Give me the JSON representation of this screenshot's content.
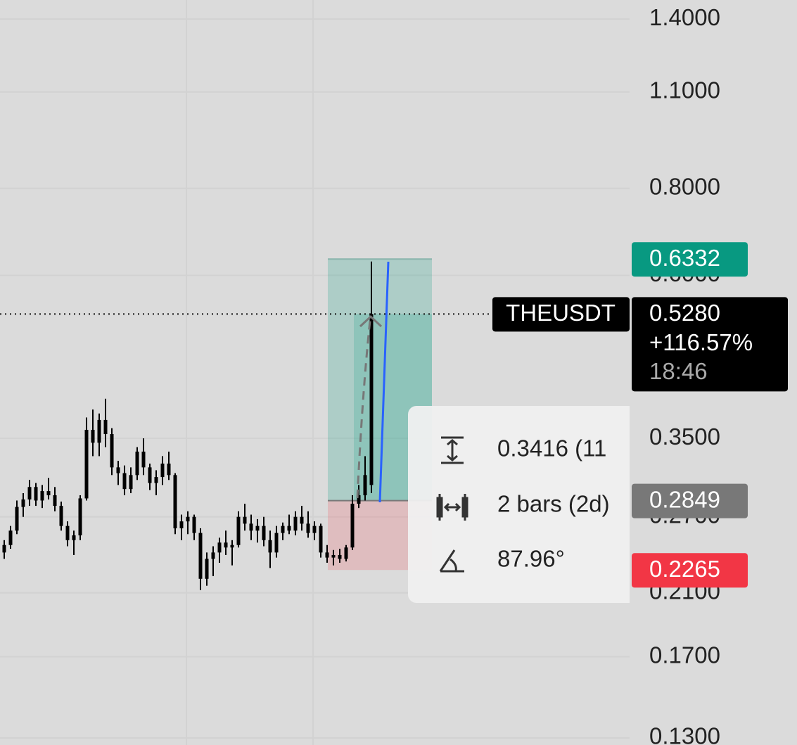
{
  "chart_data": {
    "type": "candlestick",
    "log_scale": true,
    "grid": true,
    "ylim": [
      0.127,
      1.491
    ],
    "yticks": [
      {
        "value": 1.4,
        "label": "1.4000"
      },
      {
        "value": 1.1,
        "label": "1.1000"
      },
      {
        "value": 0.8,
        "label": "0.8000"
      },
      {
        "value": 0.6,
        "label": "0.6000"
      },
      {
        "value": 0.35,
        "label": "0.3500"
      },
      {
        "value": 0.27,
        "label": "0.2700"
      },
      {
        "value": 0.21,
        "label": "0.2100"
      },
      {
        "value": 0.17,
        "label": "0.1700"
      },
      {
        "value": 0.13,
        "label": "0.1300"
      }
    ],
    "color": "#000000",
    "open": [
      0.24,
      0.246,
      0.258,
      0.279,
      0.286,
      0.298,
      0.285,
      0.294,
      0.29,
      0.28,
      0.262,
      0.25,
      0.254,
      0.287,
      0.36,
      0.345,
      0.372,
      0.355,
      0.318,
      0.312,
      0.296,
      0.31,
      0.335,
      0.318,
      0.302,
      0.308,
      0.322,
      0.31,
      0.26,
      0.266,
      0.27,
      0.256,
      0.22,
      0.235,
      0.24,
      0.248,
      0.244,
      0.246,
      0.27,
      0.264,
      0.258,
      0.262,
      0.25,
      0.24,
      0.256,
      0.262,
      0.258,
      0.27,
      0.264,
      0.256,
      0.262,
      0.24,
      0.236,
      0.238,
      0.235,
      0.244,
      0.282,
      0.29,
      0.3
    ],
    "high": [
      0.25,
      0.262,
      0.285,
      0.292,
      0.305,
      0.302,
      0.3,
      0.307,
      0.298,
      0.284,
      0.266,
      0.258,
      0.29,
      0.375,
      0.385,
      0.38,
      0.399,
      0.362,
      0.325,
      0.32,
      0.318,
      0.34,
      0.35,
      0.322,
      0.315,
      0.33,
      0.335,
      0.312,
      0.272,
      0.275,
      0.272,
      0.26,
      0.24,
      0.245,
      0.252,
      0.258,
      0.25,
      0.275,
      0.282,
      0.272,
      0.268,
      0.27,
      0.258,
      0.262,
      0.265,
      0.272,
      0.275,
      0.28,
      0.275,
      0.266,
      0.264,
      0.246,
      0.242,
      0.243,
      0.246,
      0.29,
      0.3,
      0.33,
      0.628
    ],
    "low": [
      0.235,
      0.243,
      0.255,
      0.27,
      0.28,
      0.28,
      0.278,
      0.286,
      0.275,
      0.258,
      0.245,
      0.238,
      0.25,
      0.285,
      0.33,
      0.33,
      0.34,
      0.31,
      0.3,
      0.29,
      0.292,
      0.305,
      0.31,
      0.295,
      0.29,
      0.3,
      0.305,
      0.255,
      0.25,
      0.255,
      0.25,
      0.212,
      0.215,
      0.222,
      0.232,
      0.238,
      0.23,
      0.244,
      0.258,
      0.25,
      0.248,
      0.245,
      0.228,
      0.236,
      0.25,
      0.255,
      0.254,
      0.258,
      0.252,
      0.25,
      0.236,
      0.232,
      0.23,
      0.232,
      0.233,
      0.242,
      0.278,
      0.285,
      0.292
    ],
    "close": [
      0.246,
      0.258,
      0.279,
      0.286,
      0.298,
      0.285,
      0.294,
      0.29,
      0.28,
      0.262,
      0.25,
      0.254,
      0.287,
      0.36,
      0.345,
      0.372,
      0.355,
      0.318,
      0.312,
      0.296,
      0.31,
      0.335,
      0.318,
      0.302,
      0.308,
      0.322,
      0.31,
      0.26,
      0.266,
      0.27,
      0.256,
      0.22,
      0.235,
      0.24,
      0.248,
      0.244,
      0.246,
      0.27,
      0.264,
      0.258,
      0.262,
      0.25,
      0.24,
      0.256,
      0.262,
      0.258,
      0.27,
      0.264,
      0.256,
      0.262,
      0.24,
      0.236,
      0.238,
      0.235,
      0.244,
      0.282,
      0.29,
      0.31,
      0.528
    ],
    "position": {
      "target": 0.6332,
      "entry": 0.2849,
      "stop": 0.2265,
      "target_color": "#089981",
      "entry_color": "#787878",
      "stop_color": "#f23645"
    },
    "symbol": "THEUSDT",
    "last_price": {
      "value": 0.528,
      "label": "0.5280"
    },
    "change": "+116.57%",
    "countdown": "18:46",
    "measure": {
      "price_range": "0.3416 (11",
      "bars": "2 bars (2d)",
      "angle": "87.96°"
    }
  }
}
